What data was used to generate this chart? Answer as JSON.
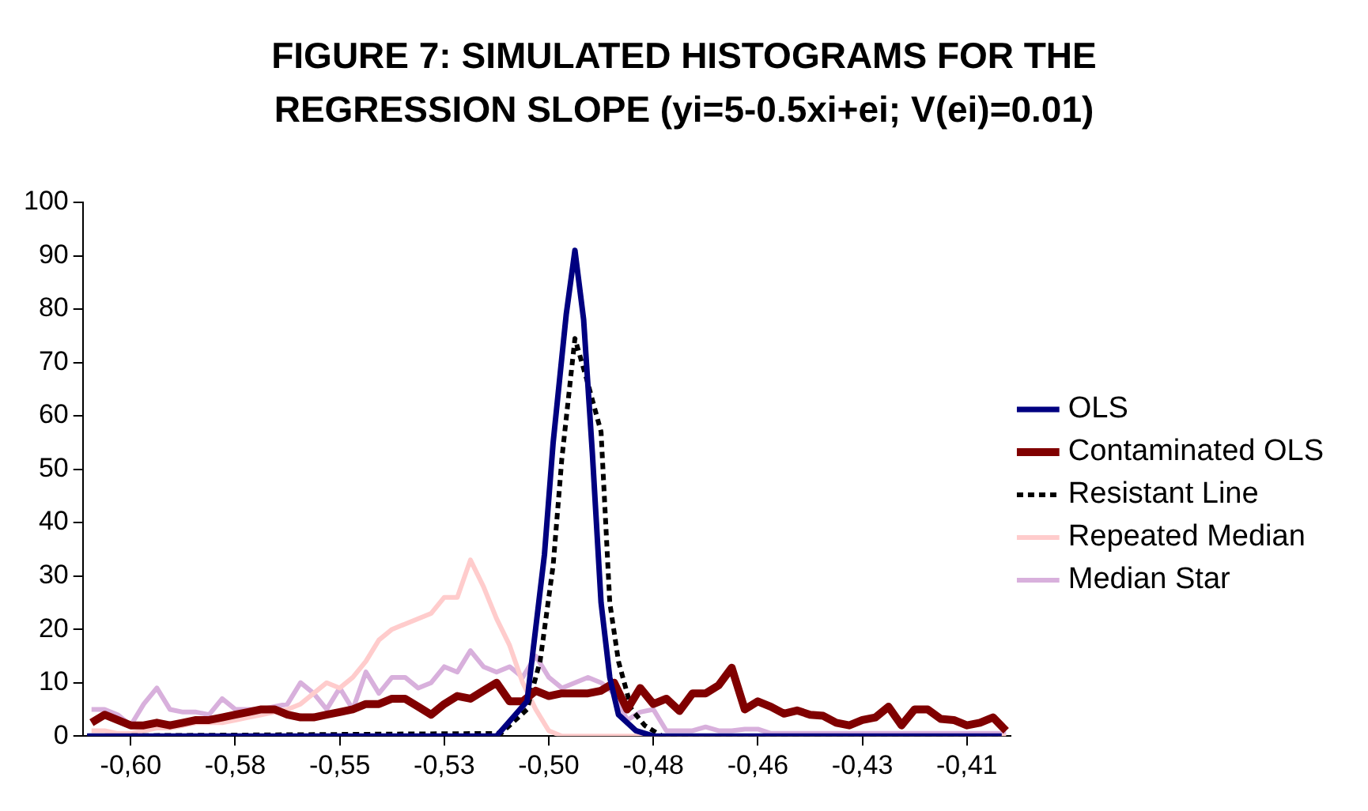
{
  "chart_data": {
    "type": "line",
    "title": "FIGURE 7: SIMULATED HISTOGRAMS FOR THE REGRESSION SLOPE (yi=5-0.5xi+ei; V(ei)=0.01)",
    "x": [
      -0.609,
      -0.606,
      -0.603,
      -0.6,
      -0.597,
      -0.594,
      -0.591,
      -0.588,
      -0.585,
      -0.582,
      -0.579,
      -0.576,
      -0.573,
      -0.57,
      -0.567,
      -0.564,
      -0.561,
      -0.558,
      -0.555,
      -0.552,
      -0.549,
      -0.546,
      -0.543,
      -0.54,
      -0.537,
      -0.534,
      -0.531,
      -0.528,
      -0.525,
      -0.522,
      -0.519,
      -0.516,
      -0.513,
      -0.51,
      -0.507,
      -0.504,
      -0.501,
      -0.498,
      -0.495,
      -0.492,
      -0.489,
      -0.486,
      -0.483,
      -0.48,
      -0.477,
      -0.474,
      -0.471,
      -0.468,
      -0.465,
      -0.462,
      -0.459,
      -0.456,
      -0.453,
      -0.45,
      -0.447,
      -0.444,
      -0.441,
      -0.438,
      -0.435,
      -0.432,
      -0.429,
      -0.426,
      -0.423,
      -0.42,
      -0.417,
      -0.414,
      -0.411,
      -0.408,
      -0.405,
      -0.402,
      -0.399
    ],
    "series": [
      {
        "name": "OLS",
        "color": "#000080",
        "x": [
          -0.61,
          -0.516,
          -0.509,
          -0.505,
          -0.503,
          -0.5,
          -0.498,
          -0.496,
          -0.494,
          -0.492,
          -0.49,
          -0.488,
          -0.484,
          -0.48,
          -0.4
        ],
        "values": [
          0,
          0,
          6.5,
          34,
          55,
          79,
          91,
          78,
          53,
          25,
          11,
          4,
          1,
          0,
          0
        ]
      },
      {
        "name": "Contaminated OLS",
        "color": "#800000",
        "values": [
          2.5,
          4,
          3,
          2,
          2,
          2.5,
          2,
          2.5,
          3,
          3,
          3.5,
          4,
          4.5,
          5,
          5,
          4,
          3.5,
          3.5,
          4,
          4.5,
          5,
          6,
          6,
          7,
          7,
          5.5,
          4,
          6,
          7.5,
          7,
          8.5,
          10,
          6.5,
          6.5,
          8.5,
          7.5,
          8,
          8,
          8,
          8.5,
          10,
          5,
          9,
          6,
          7,
          4.7,
          8,
          8,
          9.5,
          12.8,
          5,
          6.5,
          5.5,
          4.2,
          4.8,
          4,
          3.8,
          2.5,
          2,
          3,
          3.5,
          5.5,
          2,
          5,
          5,
          3.2,
          3,
          2,
          2.5,
          3.5,
          1
        ]
      },
      {
        "name": "Resistant Line",
        "color": "#000000",
        "line_style": "dashed",
        "x": [
          -0.61,
          -0.515,
          -0.509,
          -0.506,
          -0.503,
          -0.501,
          -0.498,
          -0.495,
          -0.492,
          -0.491,
          -0.49,
          -0.488,
          -0.485,
          -0.482,
          -0.478,
          -0.4
        ],
        "values": [
          0,
          0.5,
          5,
          14,
          32,
          52,
          74.5,
          66,
          57,
          41,
          25,
          14,
          5,
          2,
          0,
          0
        ]
      },
      {
        "name": "Repeated Median",
        "color": "#ffcccc",
        "values": [
          1,
          1,
          0.5,
          0.5,
          1,
          1.5,
          1.5,
          2,
          2.5,
          2.5,
          2.5,
          3,
          3.5,
          4,
          4.5,
          5,
          6,
          8,
          10,
          9,
          11,
          14,
          18,
          20,
          21,
          22,
          23,
          26,
          26,
          33,
          28,
          22,
          17,
          10,
          5,
          1,
          0,
          0,
          0,
          0,
          0,
          0,
          0,
          0,
          0,
          0,
          0,
          0,
          0,
          0,
          0,
          0,
          0,
          0,
          0,
          0,
          0,
          0,
          0,
          0,
          0,
          0,
          0,
          0,
          0,
          0,
          0,
          0,
          0,
          0,
          0
        ]
      },
      {
        "name": "Median Star",
        "color": "#d8b0dc",
        "values": [
          5,
          5,
          4,
          2,
          6,
          9,
          5,
          4.5,
          4.5,
          4,
          7,
          5,
          5,
          5,
          5.5,
          6,
          10,
          8,
          5,
          9,
          5,
          12,
          8,
          11,
          11,
          9,
          10,
          13,
          12,
          16,
          13,
          12,
          13,
          11,
          15,
          11,
          9,
          10,
          11,
          10,
          8,
          3,
          4.5,
          5,
          1,
          1,
          1,
          1.7,
          1,
          1,
          1.3,
          1.3,
          0.5,
          0.5,
          0.5,
          0.5,
          0.5,
          0.5,
          0.5,
          0.5,
          0.5,
          0.5,
          0.5,
          0.5,
          0.5,
          0.5,
          0.5,
          0.5,
          0.5,
          0.5,
          0.5
        ]
      }
    ],
    "xlim": [
      -0.611,
      -0.398
    ],
    "xticks": [
      {
        "value": -0.6,
        "label": "-0,60"
      },
      {
        "value": -0.576,
        "label": "-0,58"
      },
      {
        "value": -0.552,
        "label": "-0,55"
      },
      {
        "value": -0.528,
        "label": "-0,53"
      },
      {
        "value": -0.504,
        "label": "-0,50"
      },
      {
        "value": -0.48,
        "label": "-0,48"
      },
      {
        "value": -0.456,
        "label": "-0,46"
      },
      {
        "value": -0.432,
        "label": "-0,43"
      },
      {
        "value": -0.408,
        "label": "-0,41"
      }
    ],
    "ylim": [
      0,
      100
    ],
    "yticks": [
      0,
      10,
      20,
      30,
      40,
      50,
      60,
      70,
      80,
      90,
      100
    ],
    "grid": false,
    "legend": "right",
    "marker": "none",
    "line_style": "solid"
  }
}
